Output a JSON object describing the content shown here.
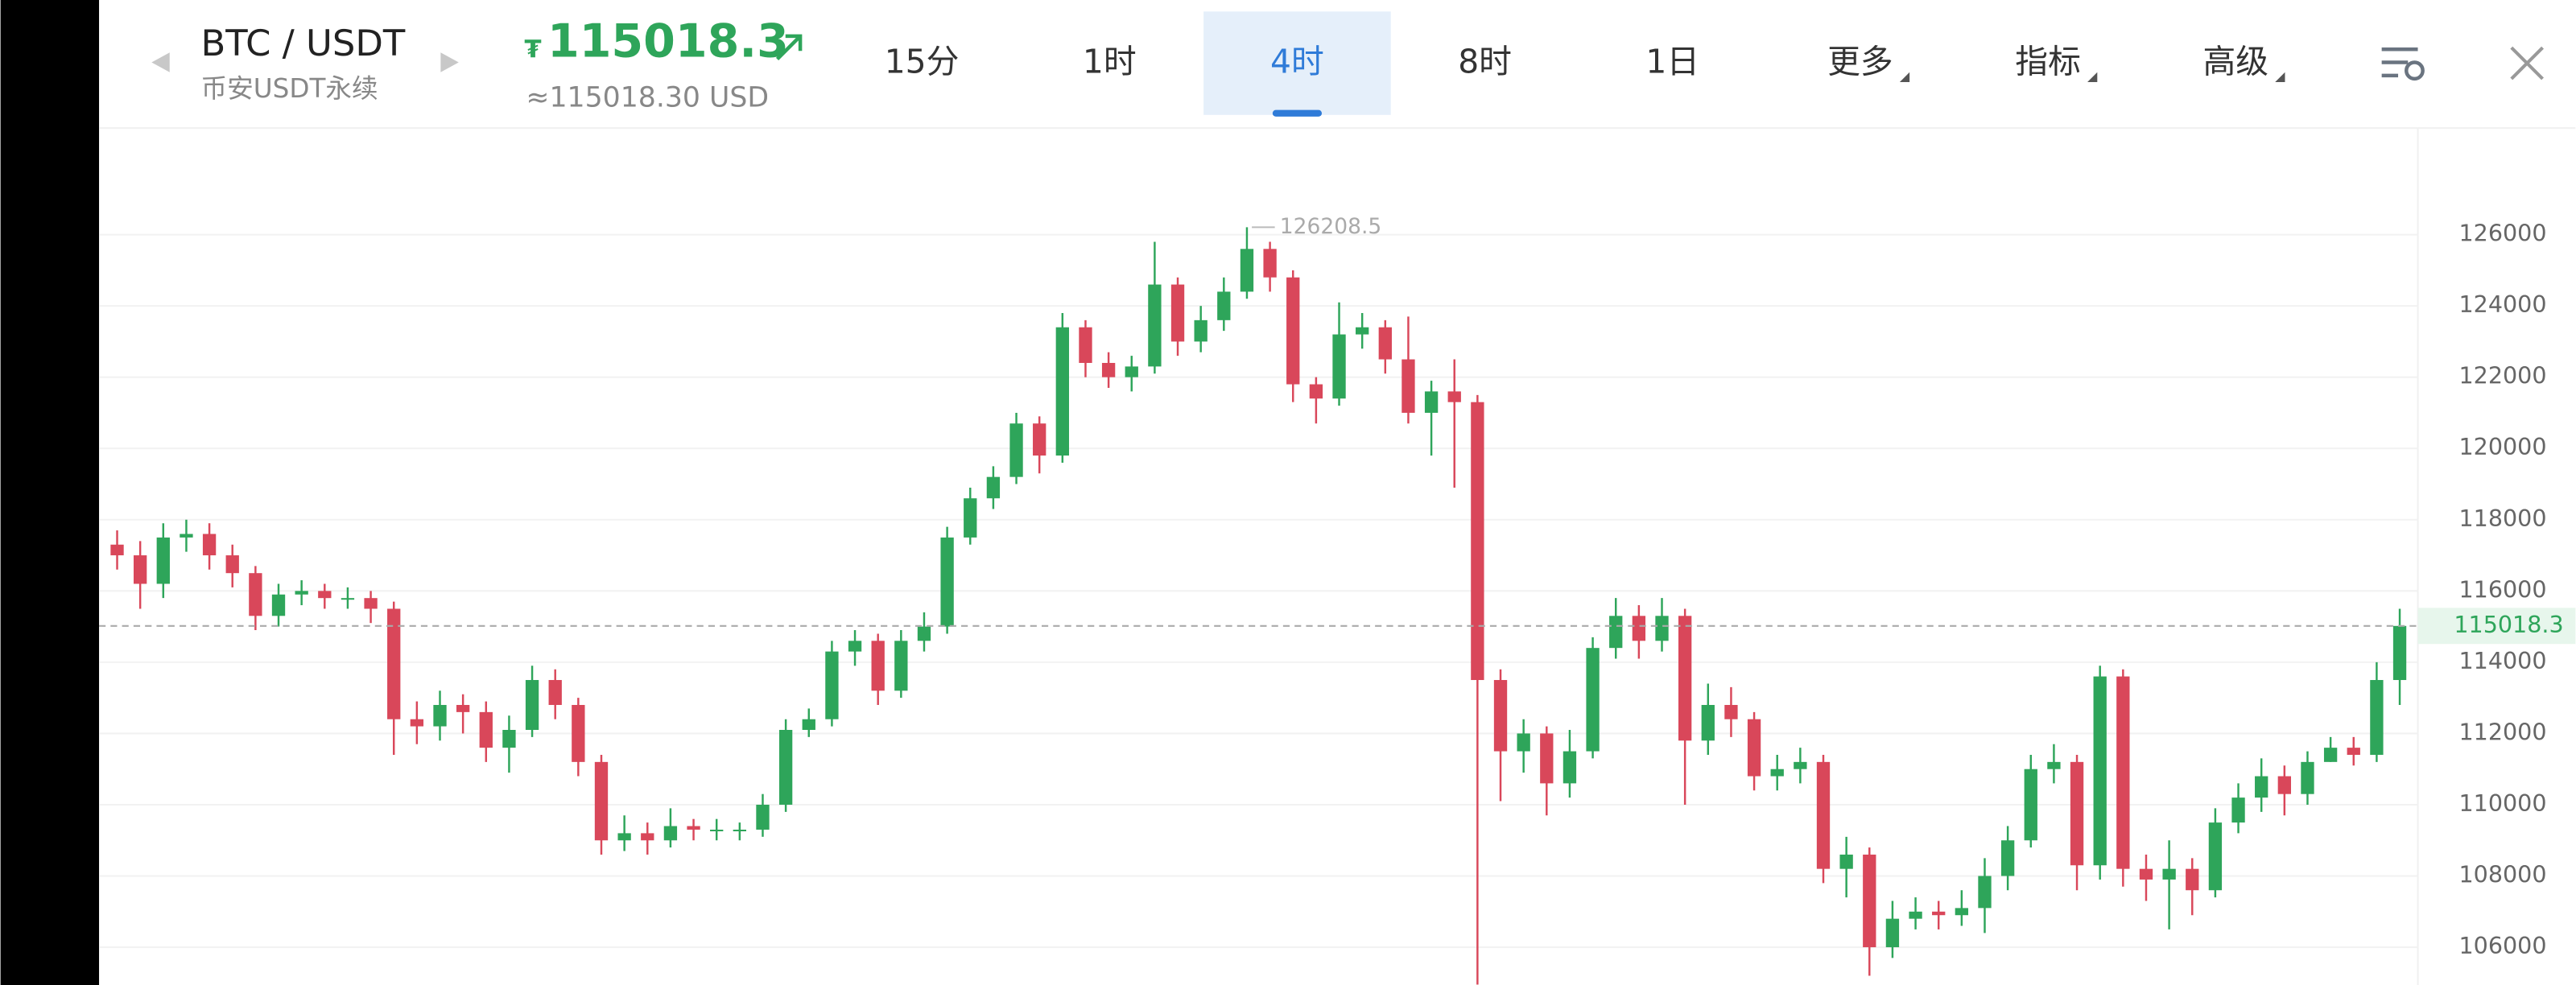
{
  "header": {
    "symbol": "BTC / USDT",
    "market": "币安USDT永续",
    "currency_symbol": "₮",
    "price": "115018.3",
    "usd_price": "≈115018.30 USD",
    "tabs": [
      "15分",
      "1时",
      "4时",
      "8时",
      "1日",
      "更多",
      "指标",
      "高级"
    ],
    "active_tab": 2
  },
  "chart_data": {
    "type": "candlestick",
    "up_color": "#2ea55a",
    "down_color": "#d9475a",
    "grid": true,
    "ylim": [
      104940,
      128900
    ],
    "yticks": [
      106000,
      108000,
      110000,
      112000,
      114000,
      116000,
      118000,
      120000,
      122000,
      124000,
      126000
    ],
    "last_price": 115018.3,
    "high_marker_index": 49,
    "open": [
      117300,
      117000,
      116200,
      117500,
      117600,
      117000,
      116500,
      115300,
      115900,
      116000,
      115800,
      115800,
      115500,
      112400,
      112200,
      112800,
      112600,
      111600,
      112100,
      113500,
      112800,
      111200,
      109000,
      109200,
      109000,
      109400,
      109300,
      109300,
      109300,
      110000,
      112100,
      112400,
      114300,
      114600,
      113200,
      114600,
      115000,
      117500,
      118600,
      119200,
      120700,
      119800,
      123400,
      122400,
      122000,
      122300,
      124600,
      123000,
      123600,
      124400,
      125600,
      124800,
      121800,
      121400,
      123200,
      123400,
      122500,
      121000,
      121600,
      121300,
      113500,
      111500,
      112000,
      110600,
      111500,
      114400,
      115300,
      114600,
      115300,
      111800,
      112800,
      112400,
      110800,
      111000,
      111200,
      108200,
      108600,
      106000,
      106800,
      107000,
      106900,
      107100,
      108000,
      109000,
      111000,
      111200,
      108300,
      113600,
      108200,
      107900,
      108200,
      107600,
      109500,
      110200,
      110800,
      110300,
      111200,
      111600,
      111400,
      113500
    ],
    "high": [
      117700,
      117400,
      117900,
      118000,
      117900,
      117300,
      116700,
      116200,
      116300,
      116200,
      116100,
      116000,
      115700,
      112900,
      113200,
      113100,
      112900,
      112500,
      113900,
      113800,
      113000,
      111400,
      109700,
      109500,
      109900,
      109600,
      109600,
      109500,
      110300,
      112400,
      112700,
      114600,
      114900,
      114800,
      114900,
      115400,
      117800,
      118900,
      119500,
      121000,
      120900,
      123800,
      123600,
      122700,
      122600,
      125800,
      124800,
      124000,
      124800,
      126208.5,
      125800,
      125000,
      122000,
      124100,
      123800,
      123600,
      123700,
      121900,
      122500,
      121500,
      113800,
      112400,
      112200,
      112100,
      114700,
      115800,
      115600,
      115800,
      115500,
      113400,
      113300,
      112600,
      111400,
      111600,
      111400,
      109100,
      108800,
      107300,
      107400,
      107300,
      107600,
      108500,
      109400,
      111400,
      111700,
      111400,
      113900,
      113800,
      108600,
      109000,
      108500,
      109900,
      110600,
      111300,
      111100,
      111500,
      111900,
      111900,
      114000,
      115500
    ],
    "low": [
      116600,
      115500,
      115800,
      117100,
      116600,
      116100,
      114900,
      115000,
      115600,
      115500,
      115500,
      115100,
      111400,
      111700,
      111800,
      112000,
      111200,
      110900,
      111900,
      112400,
      110800,
      108600,
      108700,
      108600,
      108800,
      109000,
      109000,
      109000,
      109100,
      109800,
      111900,
      112200,
      113900,
      112800,
      113000,
      114300,
      114800,
      117300,
      118300,
      119000,
      119300,
      119600,
      122000,
      121700,
      121600,
      122100,
      122600,
      122700,
      123300,
      124200,
      124400,
      121300,
      120700,
      121200,
      122800,
      122100,
      120700,
      119800,
      118900,
      104950,
      110100,
      110900,
      109700,
      110200,
      111300,
      114100,
      114100,
      114300,
      110000,
      111400,
      111900,
      110400,
      110400,
      110600,
      107800,
      107400,
      105200,
      105700,
      106500,
      106500,
      106600,
      106400,
      107600,
      108800,
      110600,
      107600,
      107900,
      107700,
      107300,
      106500,
      106900,
      107400,
      109200,
      109800,
      109700,
      110000,
      111200,
      111100,
      111200,
      112800
    ],
    "close": [
      117000,
      116200,
      117500,
      117600,
      117000,
      116500,
      115300,
      115900,
      116000,
      115800,
      115800,
      115500,
      112400,
      112200,
      112800,
      112600,
      111600,
      112100,
      113500,
      112800,
      111200,
      109000,
      109200,
      109000,
      109400,
      109300,
      109300,
      109300,
      110000,
      112100,
      112400,
      114300,
      114600,
      113200,
      114600,
      115000,
      117500,
      118600,
      119200,
      120700,
      119800,
      123400,
      122400,
      122000,
      122300,
      124600,
      123000,
      123600,
      124400,
      125600,
      124800,
      121800,
      121400,
      123200,
      123400,
      122500,
      121000,
      121600,
      121300,
      113500,
      111500,
      112000,
      110600,
      111500,
      114400,
      115300,
      114600,
      115300,
      111800,
      112800,
      112400,
      110800,
      111000,
      111200,
      108200,
      108600,
      106000,
      106800,
      107000,
      106900,
      107100,
      108000,
      109000,
      111000,
      111200,
      108300,
      113600,
      108200,
      107900,
      108200,
      107600,
      109500,
      110200,
      110800,
      110300,
      111200,
      111600,
      111400,
      113500,
      115018.3
    ]
  }
}
